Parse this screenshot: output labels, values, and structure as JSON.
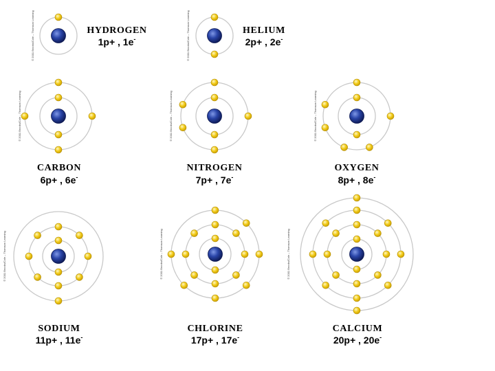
{
  "credit": "© 2001 Brooks/Cole – Thomson Learning",
  "colors": {
    "orbit": "#c8c8c8",
    "electron": "#f2cc1b",
    "nucleus": "#1a2f8a"
  },
  "atoms": [
    {
      "id": "hydrogen",
      "name": "HYDROGEN",
      "count_main": "1p+ , 1e",
      "count_sup": "-",
      "shells": [
        1
      ]
    },
    {
      "id": "helium",
      "name": "HELIUM",
      "count_main": "2p+ , 2e",
      "count_sup": "-",
      "shells": [
        2
      ]
    },
    {
      "id": "carbon",
      "name": "CARBON",
      "count_main": "6p+ , 6e",
      "count_sup": "-",
      "shells": [
        2,
        4
      ]
    },
    {
      "id": "nitrogen",
      "name": "NITROGEN",
      "count_main": "7p+ , 7e",
      "count_sup": "-",
      "shells": [
        2,
        5
      ]
    },
    {
      "id": "oxygen",
      "name": "OXYGEN",
      "count_main": "8p+ , 8e",
      "count_sup": "-",
      "shells": [
        2,
        6
      ]
    },
    {
      "id": "sodium",
      "name": "SODIUM",
      "count_main": "11p+ , 11e",
      "count_sup": "-",
      "shells": [
        2,
        8,
        1
      ]
    },
    {
      "id": "chlorine",
      "name": "CHLORINE",
      "count_main": "17p+ , 17e",
      "count_sup": "-",
      "shells": [
        2,
        8,
        7
      ]
    },
    {
      "id": "calcium",
      "name": "CALCIUM",
      "count_main": "20p+ , 20e",
      "count_sup": "-",
      "shells": [
        2,
        8,
        8,
        2
      ]
    }
  ]
}
